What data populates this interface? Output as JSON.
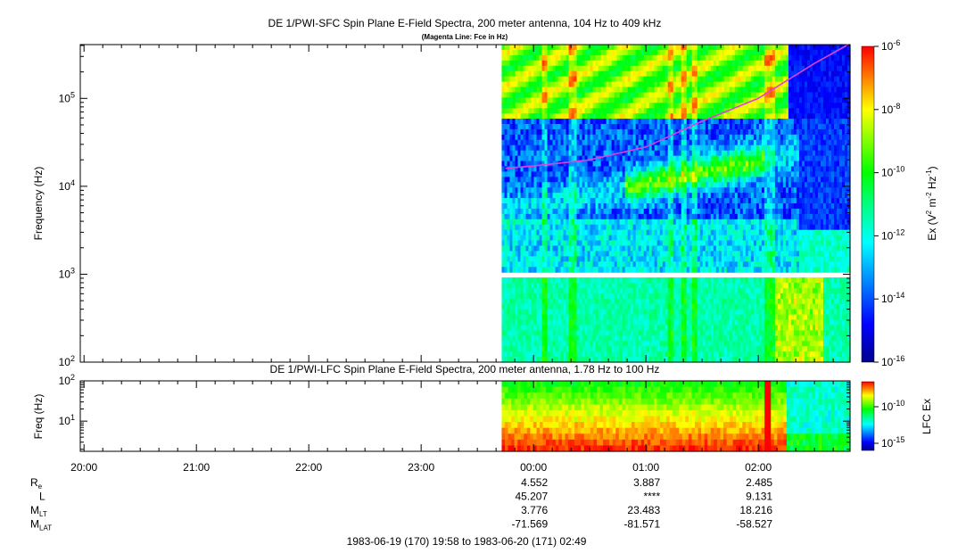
{
  "header": {
    "title": "DE 1/PWI-SFC  Spin Plane E-Field Spectra, 200 meter antenna, 104 Hz to 409 kHz",
    "subtitle": "(Magenta Line: Fce in Hz)"
  },
  "chart_data": [
    {
      "type": "heatmap",
      "name": "sfc",
      "ylabel": "Frequency (Hz)",
      "yscale": "log",
      "ylim": [
        100,
        409000
      ],
      "ytick_labels": [
        "10^2",
        "10^3",
        "10^4",
        "10^5"
      ],
      "colorbar": {
        "label": "Ex (V^2 m^-2 Hz^-1)",
        "scale": "log",
        "range": [
          1e-16,
          1e-06
        ],
        "tick_labels": [
          "10^-6",
          "10^-8",
          "10^-10",
          "10^-12",
          "10^-14",
          "10^-16"
        ],
        "colors": [
          "#00008b",
          "#0000ff",
          "#0080ff",
          "#00ffff",
          "#00ff80",
          "#00ff00",
          "#80ff00",
          "#ffff00",
          "#ff8000",
          "#ff0000"
        ]
      },
      "data_coverage": {
        "start": "1983-06-19 23:43",
        "end": "1983-06-20 02:49"
      },
      "overlay": {
        "name": "Fce",
        "color": "#e040e0",
        "points": [
          [
            "23:45",
            16000
          ],
          [
            "00:00",
            17000
          ],
          [
            "00:30",
            20000
          ],
          [
            "01:00",
            28000
          ],
          [
            "01:30",
            55000
          ],
          [
            "02:00",
            100000
          ],
          [
            "02:30",
            250000
          ],
          [
            "02:48",
            409000
          ]
        ]
      }
    },
    {
      "type": "heatmap",
      "name": "lfc",
      "title": "DE 1/PWI-LFC  Spin Plane E-Field Spectra, 200 meter antenna, 1.78 Hz to 100 Hz",
      "ylabel": "Freq (Hz)",
      "yscale": "log",
      "ylim": [
        1.78,
        100
      ],
      "ytick_labels": [
        "10^1",
        "10^2"
      ],
      "colorbar": {
        "label": "LFC Ex",
        "scale": "log",
        "tick_labels": [
          "10^-10",
          "10^-15"
        ]
      },
      "data_coverage": {
        "start": "1983-06-19 23:43",
        "end": "1983-06-20 02:49"
      }
    }
  ],
  "xaxis": {
    "ticks": [
      "20:00",
      "21:00",
      "22:00",
      "23:00",
      "00:00",
      "01:00",
      "02:00"
    ]
  },
  "ephemeris": {
    "rows": [
      {
        "label": "R",
        "sub": "e",
        "values": [
          "4.552",
          "3.887",
          "2.485"
        ]
      },
      {
        "label": "L",
        "sub": "",
        "values": [
          "45.207",
          "****",
          "9.131"
        ]
      },
      {
        "label": "M",
        "sub": "LT",
        "values": [
          "3.776",
          "23.483",
          "18.216"
        ]
      },
      {
        "label": "M",
        "sub": "LAT",
        "values": [
          "-71.569",
          "-81.571",
          "-58.527"
        ]
      }
    ],
    "range_text": "1983-06-19 (170) 19:58 to 1983-06-20 (171) 02:49"
  }
}
